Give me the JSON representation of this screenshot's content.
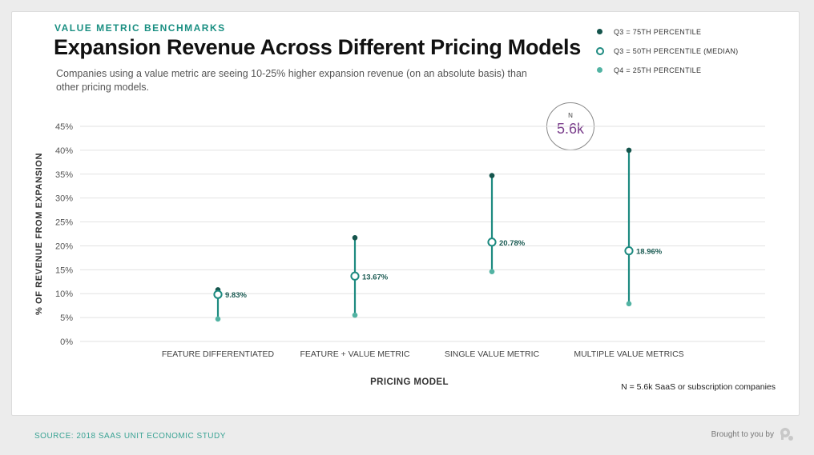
{
  "header": {
    "eyebrow": "VALUE METRIC BENCHMARKS",
    "title": "Expansion Revenue Across Different Pricing Models",
    "subtitle": "Companies using a value metric are seeing 10-25% higher expansion revenue (on an absolute basis) than other pricing models."
  },
  "legend": {
    "items": [
      {
        "label": "Q3 = 75TH PERCENTILE",
        "color": "#14544c"
      },
      {
        "label": "Q3 = 50TH PERCENTILE (MEDIAN)",
        "color": "#1d8a80"
      },
      {
        "label": "Q4 = 25TH PERCENTILE",
        "color": "#52b3a3"
      }
    ]
  },
  "sample": {
    "label": "N",
    "value": "5.6k"
  },
  "footnote": "N = 5.6k SaaS or subscription companies",
  "source": "SOURCE: 2018 SAAS UNIT ECONOMIC STUDY",
  "brand_text": "Brought to you by",
  "colors": {
    "line": "#1d8a80",
    "high": "#14544c",
    "low": "#52b3a3",
    "label": "#1a5a52",
    "grid": "#e2e2e2",
    "accent_purple": "#7b3f8c"
  },
  "chart_data": {
    "type": "range",
    "xlabel": "PRICING MODEL",
    "ylabel": "% OF REVENUE FROM EXPANSION",
    "ylim": [
      0,
      45
    ],
    "y_ticks": [
      "0%",
      "5%",
      "10%",
      "15%",
      "20%",
      "25%",
      "30%",
      "35%",
      "40%",
      "45%"
    ],
    "grid": true,
    "categories": [
      "FEATURE DIFFERENTIATED",
      "FEATURE + VALUE METRIC",
      "SINGLE VALUE METRIC",
      "MULTIPLE VALUE METRICS"
    ],
    "series": [
      {
        "name": "Q3 = 75TH PERCENTILE",
        "values": [
          10.8,
          21.7,
          34.7,
          40.0
        ]
      },
      {
        "name": "Q3 = 50TH PERCENTILE (MEDIAN)",
        "values": [
          9.83,
          13.67,
          20.78,
          18.96
        ]
      },
      {
        "name": "Q4 = 25TH PERCENTILE",
        "values": [
          4.7,
          5.5,
          14.6,
          7.9
        ]
      }
    ],
    "median_labels": [
      "9.83%",
      "13.67%",
      "20.78%",
      "18.96%"
    ]
  }
}
